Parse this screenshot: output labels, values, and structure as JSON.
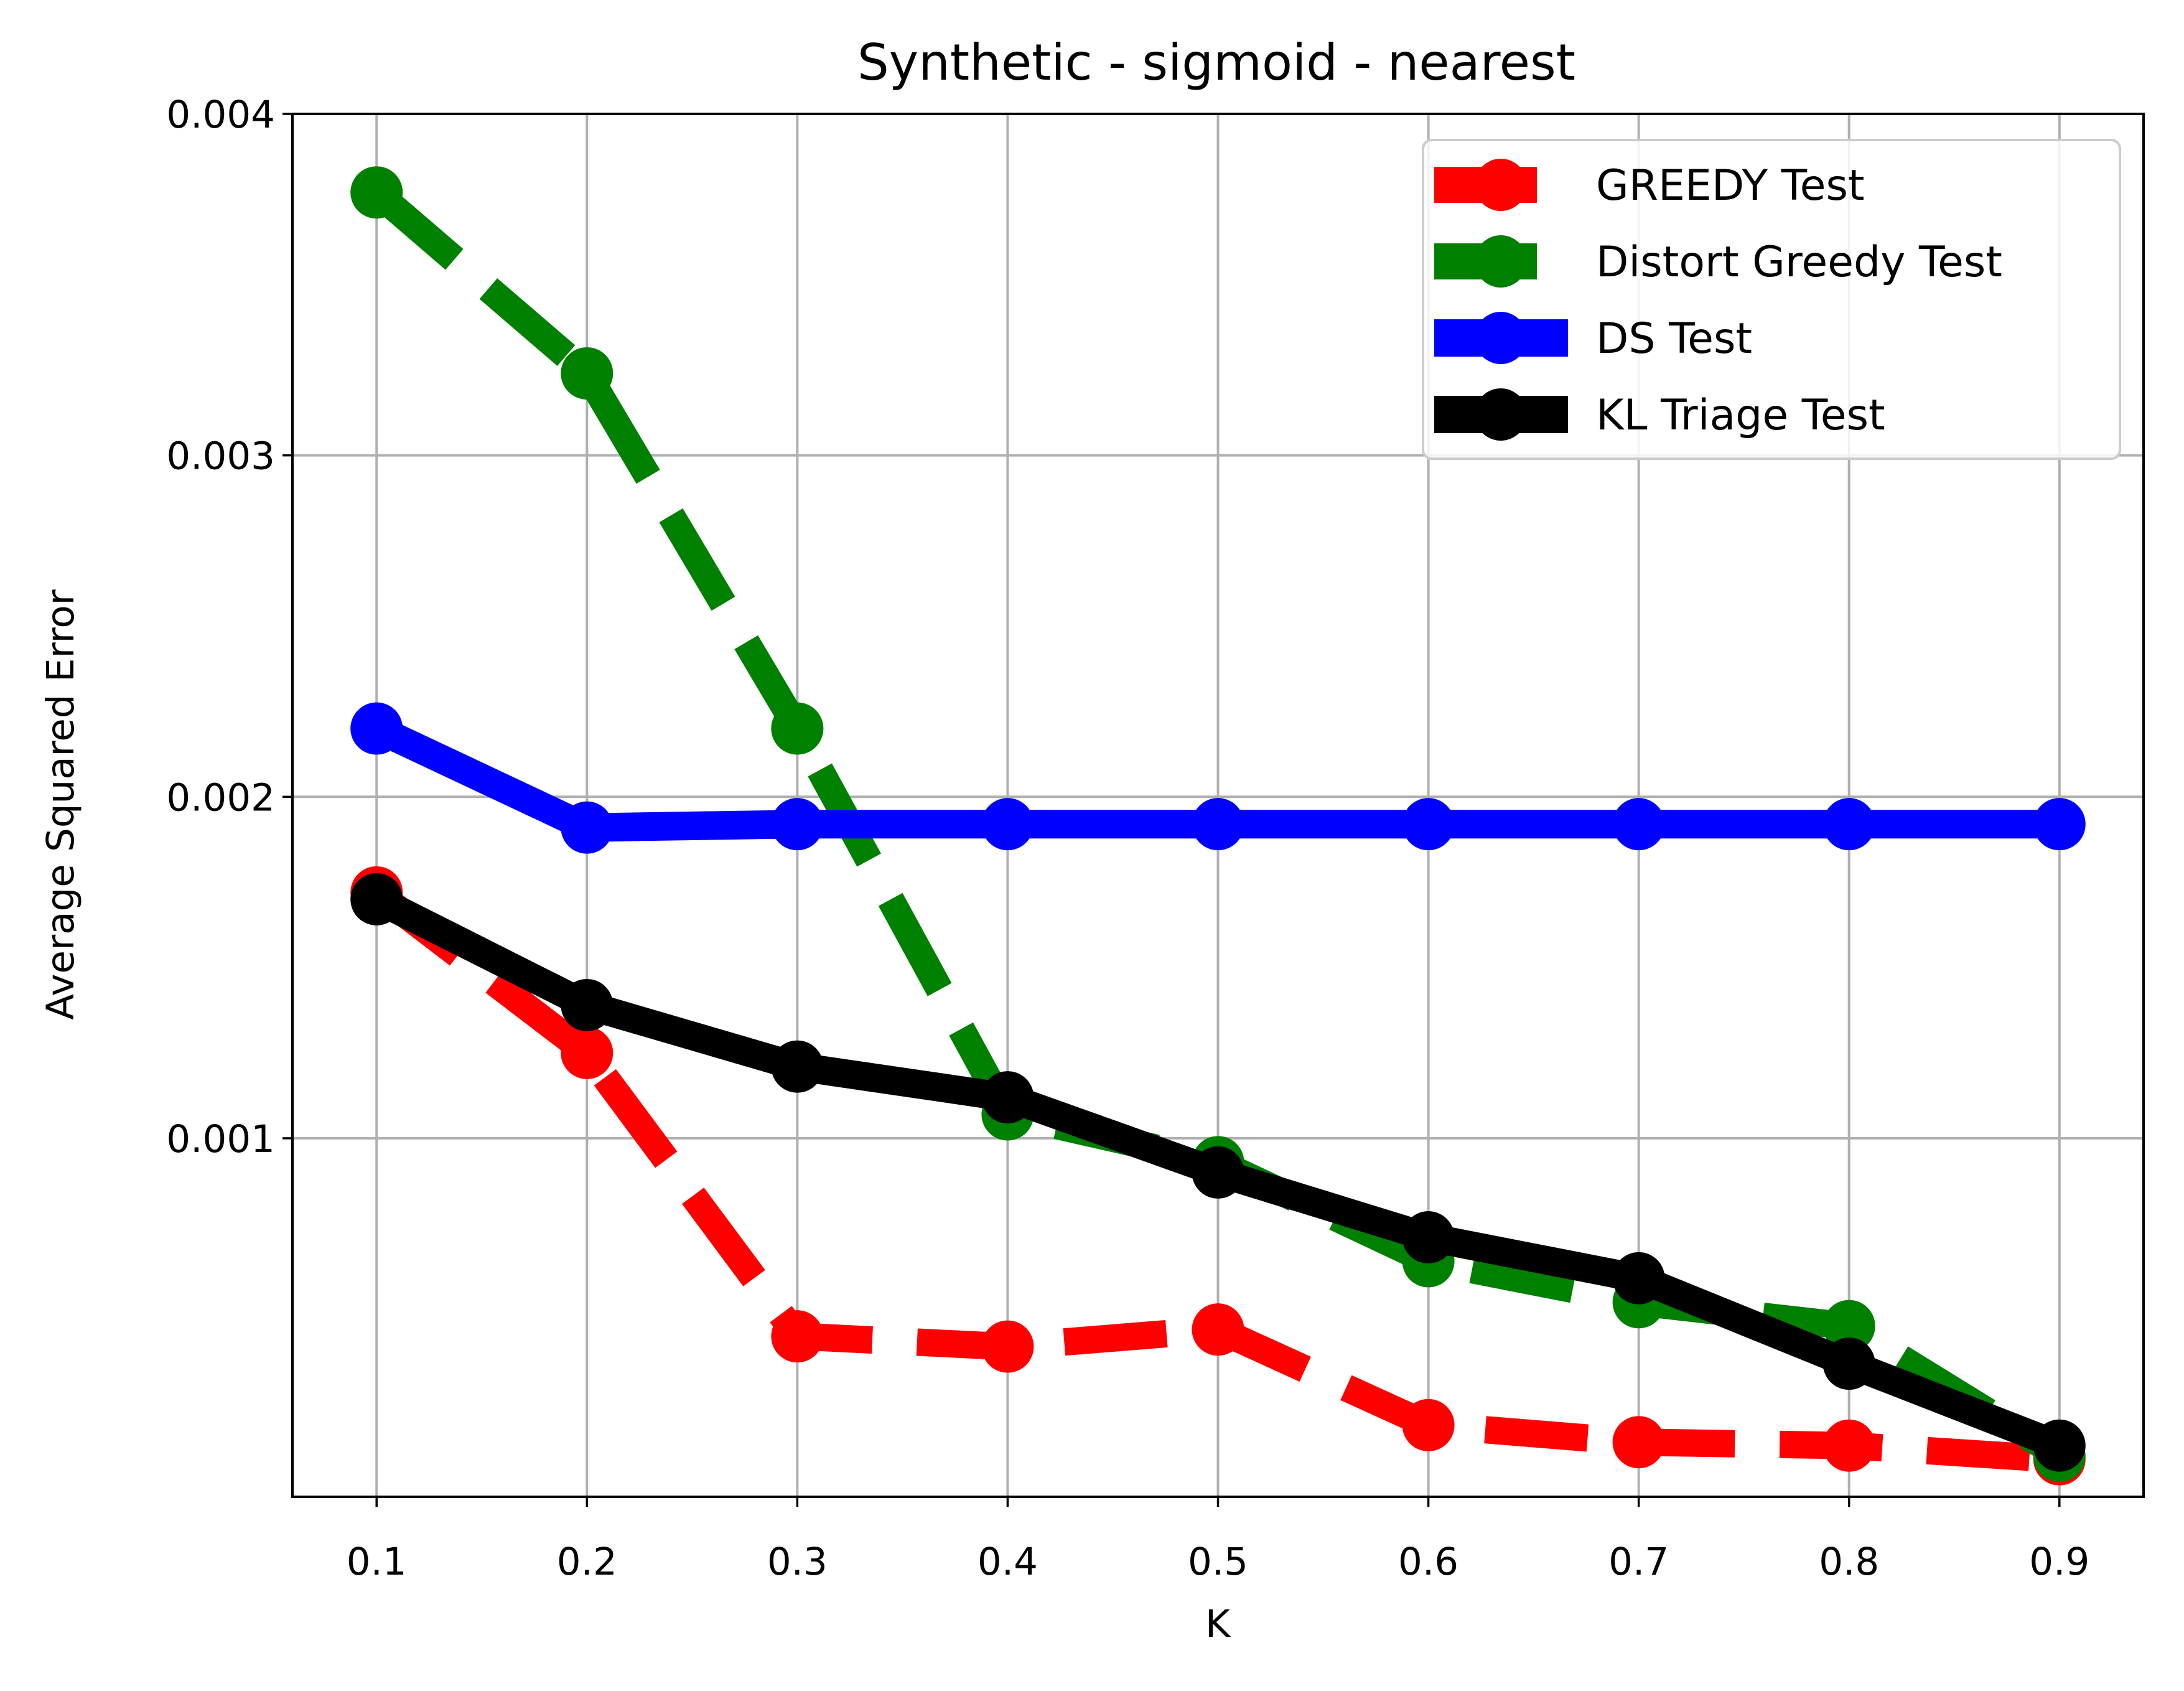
{
  "chart_data": {
    "type": "line",
    "title": "Synthetic - sigmoid - nearest",
    "xlabel": "K",
    "ylabel": "Average Squared Error",
    "x": [
      0.1,
      0.2,
      0.3,
      0.4,
      0.5,
      0.6,
      0.7,
      0.8,
      0.9
    ],
    "x_tick_labels": [
      "0.1",
      "0.2",
      "0.3",
      "0.4",
      "0.5",
      "0.6",
      "0.7",
      "0.8",
      "0.9"
    ],
    "xlim": [
      0.06,
      0.94
    ],
    "y_ticks": [
      0.001,
      0.002,
      0.003,
      0.004
    ],
    "y_tick_labels": [
      "0.001",
      "0.002",
      "0.003",
      "0.004"
    ],
    "ylim": [
      -5e-05,
      0.004
    ],
    "grid": true,
    "legend_position": "top-right",
    "series": [
      {
        "name": "GREEDY Test",
        "color": "#ff0000",
        "line_style": "dashed",
        "marker": "circle",
        "values": [
          0.00172,
          0.00125,
          0.00042,
          0.00039,
          0.00044,
          0.00016,
          0.00011,
          0.0001,
          6e-05
        ]
      },
      {
        "name": "Distort Greedy Test",
        "color": "#008000",
        "line_style": "dashed",
        "marker": "circle",
        "values": [
          0.00377,
          0.00324,
          0.0022,
          0.00107,
          0.00093,
          0.00064,
          0.00052,
          0.00045,
          7e-05
        ]
      },
      {
        "name": "DS Test",
        "color": "#0000ff",
        "line_style": "solid",
        "marker": "circle",
        "values": [
          0.0022,
          0.00191,
          0.00192,
          0.00192,
          0.00192,
          0.00192,
          0.00192,
          0.00192,
          0.00192
        ]
      },
      {
        "name": "KL Triage Test",
        "color": "#000000",
        "line_style": "solid",
        "marker": "circle",
        "values": [
          0.0017,
          0.00139,
          0.00121,
          0.00112,
          0.0009,
          0.00071,
          0.00059,
          0.00034,
          0.0001
        ]
      }
    ]
  }
}
